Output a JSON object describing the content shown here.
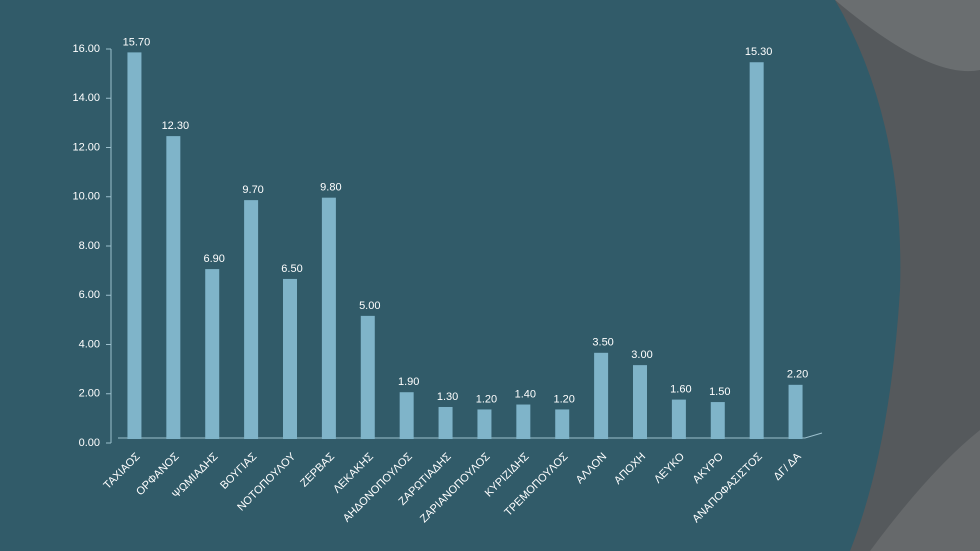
{
  "chart_data": {
    "type": "bar",
    "categories": [
      "ΤΑΧΙΑΟΣ",
      "ΟΡΦΑΝΟΣ",
      "ΨΩΜΙΑΔΗΣ",
      "ΒΟΥΓΙΑΣ",
      "ΝΟΤΟΠΟΥΛΟΥ",
      "ΖΕΡΒΑΣ",
      "ΛΕΚΑΚΗΣ",
      "ΑΗΔΟΝΟΠΟΥΛΟΣ",
      "ΖΑΡΩΤΙΑΔΗΣ",
      "ΖΑΡΙΑΝΟΠΟΥΛΟΣ",
      "ΚΥΡΙΖΙΔΗΣ",
      "ΤΡΕΜΟΠΟΥΛΟΣ",
      "ΑΛΛΟΝ",
      "ΑΠΟΧΗ",
      "ΛΕΥΚΟ",
      "ΑΚΥΡΟ",
      "ΑΝΑΠΟΦΑΣΙΣΤΟΣ",
      "ΔΓ/ ΔΑ"
    ],
    "values": [
      15.7,
      12.3,
      6.9,
      9.7,
      6.5,
      9.8,
      5.0,
      1.9,
      1.3,
      1.2,
      1.4,
      1.2,
      3.5,
      3.0,
      1.6,
      1.5,
      15.3,
      2.2
    ],
    "value_labels": [
      "15.70",
      "12.30",
      "6.90",
      "9.70",
      "6.50",
      "9.80",
      "5.00",
      "1.90",
      "1.30",
      "1.20",
      "1.40",
      "1.20",
      "3.50",
      "3.00",
      "1.60",
      "1.50",
      "15.30",
      "2.20"
    ],
    "color": "#7fb4c9",
    "ylim": [
      0,
      16
    ],
    "yticks": [
      {
        "value": 0,
        "label": "0.00"
      },
      {
        "value": 2,
        "label": "2.00"
      },
      {
        "value": 4,
        "label": "4.00"
      },
      {
        "value": 6,
        "label": "6.00"
      },
      {
        "value": 8,
        "label": "8.00"
      },
      {
        "value": 10,
        "label": "10.00"
      },
      {
        "value": 12,
        "label": "12.00"
      },
      {
        "value": 14,
        "label": "14.00"
      },
      {
        "value": 16,
        "label": "16.00"
      }
    ]
  }
}
